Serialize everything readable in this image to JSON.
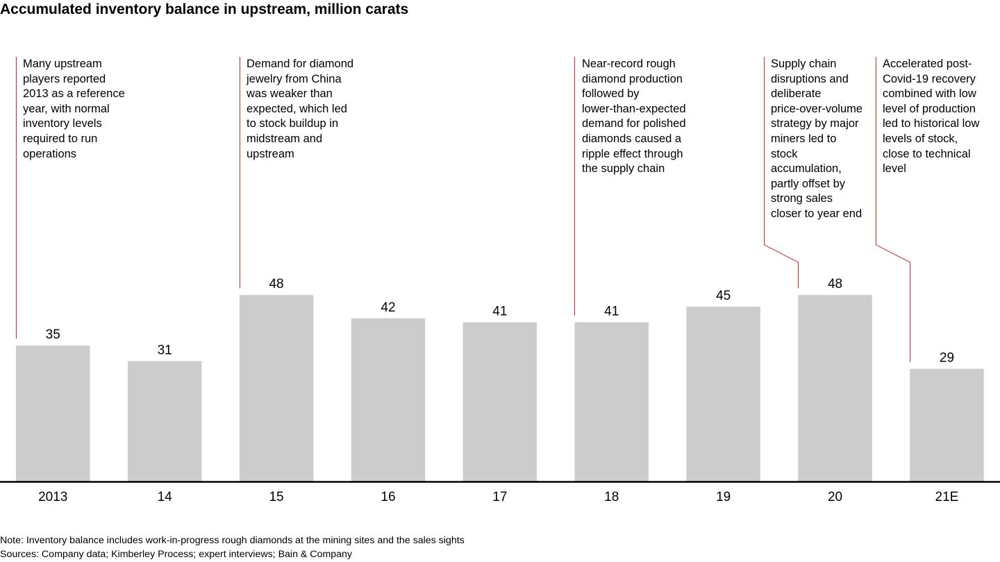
{
  "chart_data": {
    "type": "bar",
    "title": "Accumulated inventory balance in upstream, million carats",
    "categories": [
      "2013",
      "14",
      "15",
      "16",
      "17",
      "18",
      "19",
      "20",
      "21E"
    ],
    "values": [
      35,
      31,
      48,
      42,
      41,
      41,
      45,
      48,
      29
    ],
    "data_labels": [
      "35",
      "31",
      "48",
      "42",
      "41",
      "41",
      "45",
      "48",
      "29"
    ],
    "xlabel": "",
    "ylabel": "",
    "ylim": [
      0,
      87
    ],
    "grid": false,
    "legend": "none",
    "annotations": [
      {
        "category": "2013",
        "text": "Many upstream\nplayers reported\n2013 as a reference\nyear, with normal\ninventory levels\nrequired to run\noperations"
      },
      {
        "category": "15",
        "text": "Demand for diamond\njewelry from China\nwas weaker than\nexpected, which led\nto stock buildup in\nmidstream and\nupstream"
      },
      {
        "category": "18",
        "text": "Near-record rough\ndiamond production\nfollowed by\nlower-than-expected\ndemand for polished\ndiamonds caused a\nripple effect through\nthe supply chain"
      },
      {
        "category": "20",
        "text": "Supply chain\ndisruptions and\ndeliberate\nprice-over-volume\nstrategy by major\nminers led to\nstock\naccumulation,\npartly offset by\nstrong sales\ncloser to year end"
      },
      {
        "category": "21E",
        "text": "Accelerated post-\nCovid-19 recovery\ncombined with low\nlevel of production\nled to historical low\nlevels of stock,\nclose to technical\nlevel"
      }
    ]
  },
  "footnotes": {
    "note": "Note: Inventory balance includes work-in-progress rough diamonds at the mining sites and the sales sights",
    "sources": "Sources: Company data; Kimberley Process; expert interviews; Bain & Company"
  },
  "colors": {
    "bar": "#cccccc",
    "leader_line": "#d9262e",
    "axis": "#000000"
  }
}
